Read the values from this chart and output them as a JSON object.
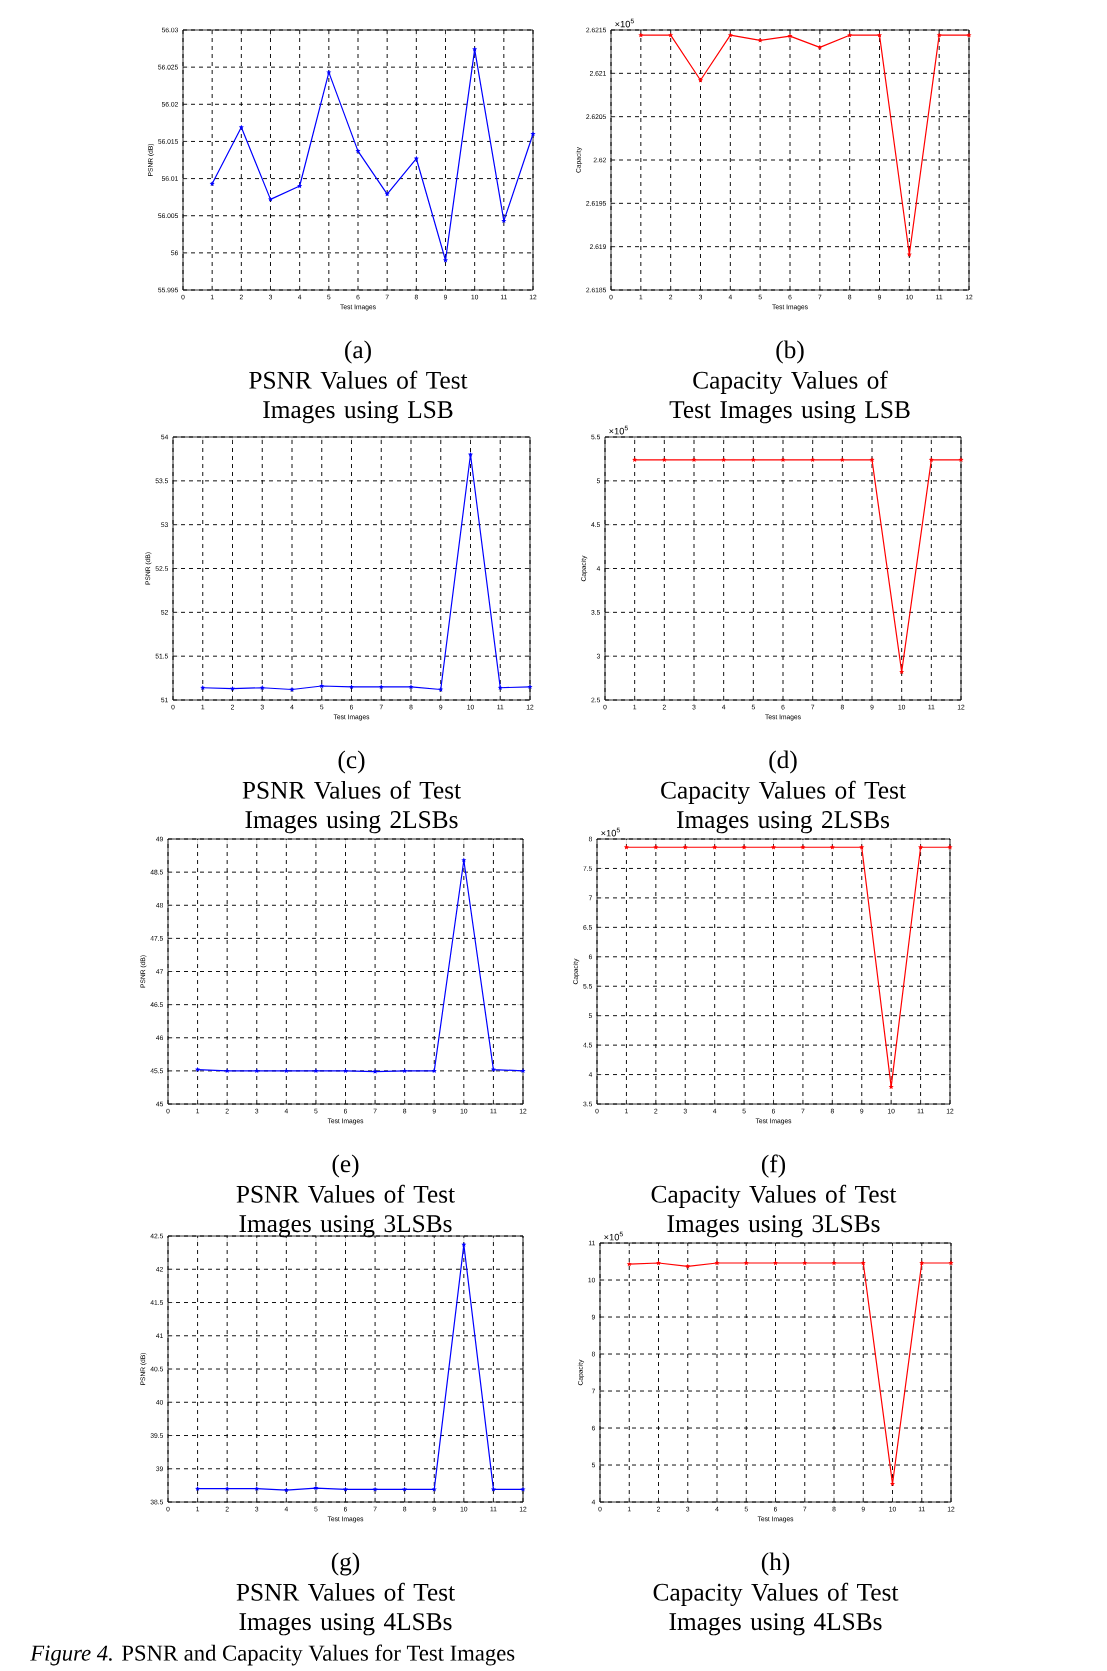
{
  "chart_data": [
    {
      "type": "line",
      "title": "(a)",
      "subtitle": "PSNR Values of Test Images using LSB",
      "xlabel": "Test Images",
      "ylabel": "PSNR (dB)",
      "x": [
        1,
        2,
        3,
        4,
        5,
        6,
        7,
        8,
        9,
        10,
        11,
        12
      ],
      "xlim": [
        0,
        12
      ],
      "xticks": [
        0,
        1,
        2,
        3,
        4,
        5,
        6,
        7,
        8,
        9,
        10,
        11,
        12
      ],
      "ylim": [
        55.995,
        56.03
      ],
      "yticks": [
        55.995,
        56,
        56.005,
        56.01,
        56.015,
        56.02,
        56.025,
        56.03
      ],
      "grid": true,
      "marker": "star",
      "series": [
        {
          "color": "#0000ff",
          "values": [
            56.0093,
            56.0169,
            56.0072,
            56.009,
            56.0243,
            56.0137,
            56.0079,
            56.0127,
            55.999,
            56.0274,
            56.0043,
            56.016
          ]
        }
      ]
    },
    {
      "type": "line",
      "title": "(b)",
      "subtitle": "Capacity Values of Test Images using LSB",
      "xlabel": "Test Images",
      "ylabel": "Capacity",
      "annotations": [
        "×10$^{5}$"
      ],
      "x": [
        1,
        2,
        3,
        4,
        5,
        6,
        7,
        8,
        9,
        10,
        11,
        12
      ],
      "xlim": [
        0,
        12
      ],
      "xticks": [
        0,
        1,
        2,
        3,
        4,
        5,
        6,
        7,
        8,
        9,
        10,
        11,
        12
      ],
      "ylim": [
        2.6185,
        2.6215
      ],
      "yticks": [
        2.6185,
        2.619,
        2.6195,
        2.62,
        2.6205,
        2.621,
        2.6215
      ],
      "grid": true,
      "marker": "star",
      "series": [
        {
          "color": "#ff0000",
          "values": [
            2.62144,
            2.62144,
            2.62092,
            2.62144,
            2.62138,
            2.62143,
            2.6213,
            2.62144,
            2.62144,
            2.61891,
            2.62144,
            2.62144
          ]
        }
      ]
    },
    {
      "type": "line",
      "title": "(c)",
      "subtitle": "PSNR Values of Test Images using 2LSBs",
      "xlabel": "Test Images",
      "ylabel": "PSNR (dB)",
      "x": [
        1,
        2,
        3,
        4,
        5,
        6,
        7,
        8,
        9,
        10,
        11,
        12
      ],
      "xlim": [
        0,
        12
      ],
      "xticks": [
        0,
        1,
        2,
        3,
        4,
        5,
        6,
        7,
        8,
        9,
        10,
        11,
        12
      ],
      "ylim": [
        51,
        54
      ],
      "yticks": [
        51,
        51.5,
        52,
        52.5,
        53,
        53.5,
        54
      ],
      "grid": true,
      "marker": "star",
      "series": [
        {
          "color": "#0000ff",
          "values": [
            51.14,
            51.13,
            51.14,
            51.12,
            51.16,
            51.15,
            51.15,
            51.15,
            51.12,
            53.8,
            51.14,
            51.15
          ]
        }
      ]
    },
    {
      "type": "line",
      "title": "(d)",
      "subtitle": "Capacity Values of Test Images using 2LSBs",
      "xlabel": "Test Images",
      "ylabel": "Capacity",
      "annotations": [
        "×10$^{5}$"
      ],
      "x": [
        1,
        2,
        3,
        4,
        5,
        6,
        7,
        8,
        9,
        10,
        11,
        12
      ],
      "xlim": [
        0,
        12
      ],
      "xticks": [
        0,
        1,
        2,
        3,
        4,
        5,
        6,
        7,
        8,
        9,
        10,
        11,
        12
      ],
      "ylim": [
        2.5,
        5.5
      ],
      "yticks": [
        2.5,
        3,
        3.5,
        4,
        4.5,
        5,
        5.5
      ],
      "grid": true,
      "marker": "star",
      "series": [
        {
          "color": "#ff0000",
          "values": [
            5.24,
            5.24,
            5.24,
            5.24,
            5.24,
            5.24,
            5.24,
            5.24,
            5.24,
            2.82,
            5.24,
            5.24
          ]
        }
      ]
    },
    {
      "type": "line",
      "title": "(e)",
      "subtitle": "PSNR Values of Test Images using 3LSBs",
      "xlabel": "Test Images",
      "ylabel": "PSNR (dB)",
      "x": [
        1,
        2,
        3,
        4,
        5,
        6,
        7,
        8,
        9,
        10,
        11,
        12
      ],
      "xlim": [
        0,
        12
      ],
      "xticks": [
        0,
        1,
        2,
        3,
        4,
        5,
        6,
        7,
        8,
        9,
        10,
        11,
        12
      ],
      "ylim": [
        45,
        49
      ],
      "yticks": [
        45,
        45.5,
        46,
        46.5,
        47,
        47.5,
        48,
        48.5,
        49
      ],
      "grid": true,
      "marker": "star",
      "series": [
        {
          "color": "#0000ff",
          "values": [
            45.52,
            45.5,
            45.5,
            45.5,
            45.5,
            45.5,
            45.49,
            45.5,
            45.5,
            48.68,
            45.52,
            45.5
          ]
        }
      ]
    },
    {
      "type": "line",
      "title": "(f)",
      "subtitle": "Capacity Values of Test Images using 3LSBs",
      "xlabel": "Test Images",
      "ylabel": "Capacity",
      "annotations": [
        "×10$^{5}$"
      ],
      "x": [
        1,
        2,
        3,
        4,
        5,
        6,
        7,
        8,
        9,
        10,
        11,
        12
      ],
      "xlim": [
        0,
        12
      ],
      "xticks": [
        0,
        1,
        2,
        3,
        4,
        5,
        6,
        7,
        8,
        9,
        10,
        11,
        12
      ],
      "ylim": [
        3.5,
        8
      ],
      "yticks": [
        3.5,
        4,
        4.5,
        5,
        5.5,
        6,
        6.5,
        7,
        7.5,
        8
      ],
      "grid": true,
      "marker": "star",
      "series": [
        {
          "color": "#ff0000",
          "values": [
            7.86,
            7.86,
            7.86,
            7.86,
            7.86,
            7.86,
            7.86,
            7.86,
            7.86,
            3.79,
            7.86,
            7.86
          ]
        }
      ]
    },
    {
      "type": "line",
      "title": "(g)",
      "subtitle": "PSNR Values of Test Images using 4LSBs",
      "xlabel": "Test Images",
      "ylabel": "PSNR (dB)",
      "x": [
        1,
        2,
        3,
        4,
        5,
        6,
        7,
        8,
        9,
        10,
        11,
        12
      ],
      "xlim": [
        0,
        12
      ],
      "xticks": [
        0,
        1,
        2,
        3,
        4,
        5,
        6,
        7,
        8,
        9,
        10,
        11,
        12
      ],
      "ylim": [
        38.5,
        42.5
      ],
      "yticks": [
        38.5,
        39,
        39.5,
        40,
        40.5,
        41,
        41.5,
        42,
        42.5
      ],
      "grid": true,
      "marker": "star",
      "series": [
        {
          "color": "#0000ff",
          "values": [
            38.7,
            38.7,
            38.7,
            38.68,
            38.71,
            38.69,
            38.69,
            38.69,
            38.69,
            42.37,
            38.69,
            38.69
          ]
        }
      ]
    },
    {
      "type": "line",
      "title": "(h)",
      "subtitle": "Capacity Values of Test Images using 4LSBs",
      "xlabel": "Test Images",
      "ylabel": "Capacity",
      "annotations": [
        "×10$^{5}$"
      ],
      "x": [
        1,
        2,
        3,
        4,
        5,
        6,
        7,
        8,
        9,
        10,
        11,
        12
      ],
      "xlim": [
        0,
        12
      ],
      "xticks": [
        0,
        1,
        2,
        3,
        4,
        5,
        6,
        7,
        8,
        9,
        10,
        11,
        12
      ],
      "ylim": [
        4,
        11
      ],
      "yticks": [
        4,
        5,
        6,
        7,
        8,
        9,
        10,
        11
      ],
      "grid": true,
      "marker": "star",
      "series": [
        {
          "color": "#ff0000",
          "values": [
            10.43,
            10.46,
            10.37,
            10.46,
            10.46,
            10.46,
            10.46,
            10.46,
            10.46,
            4.49,
            10.46,
            10.46
          ]
        }
      ]
    },
    {
      "type": "other",
      "title": "*Figure 4.* PSNR and Capacity Values for Test Images"
    }
  ]
}
